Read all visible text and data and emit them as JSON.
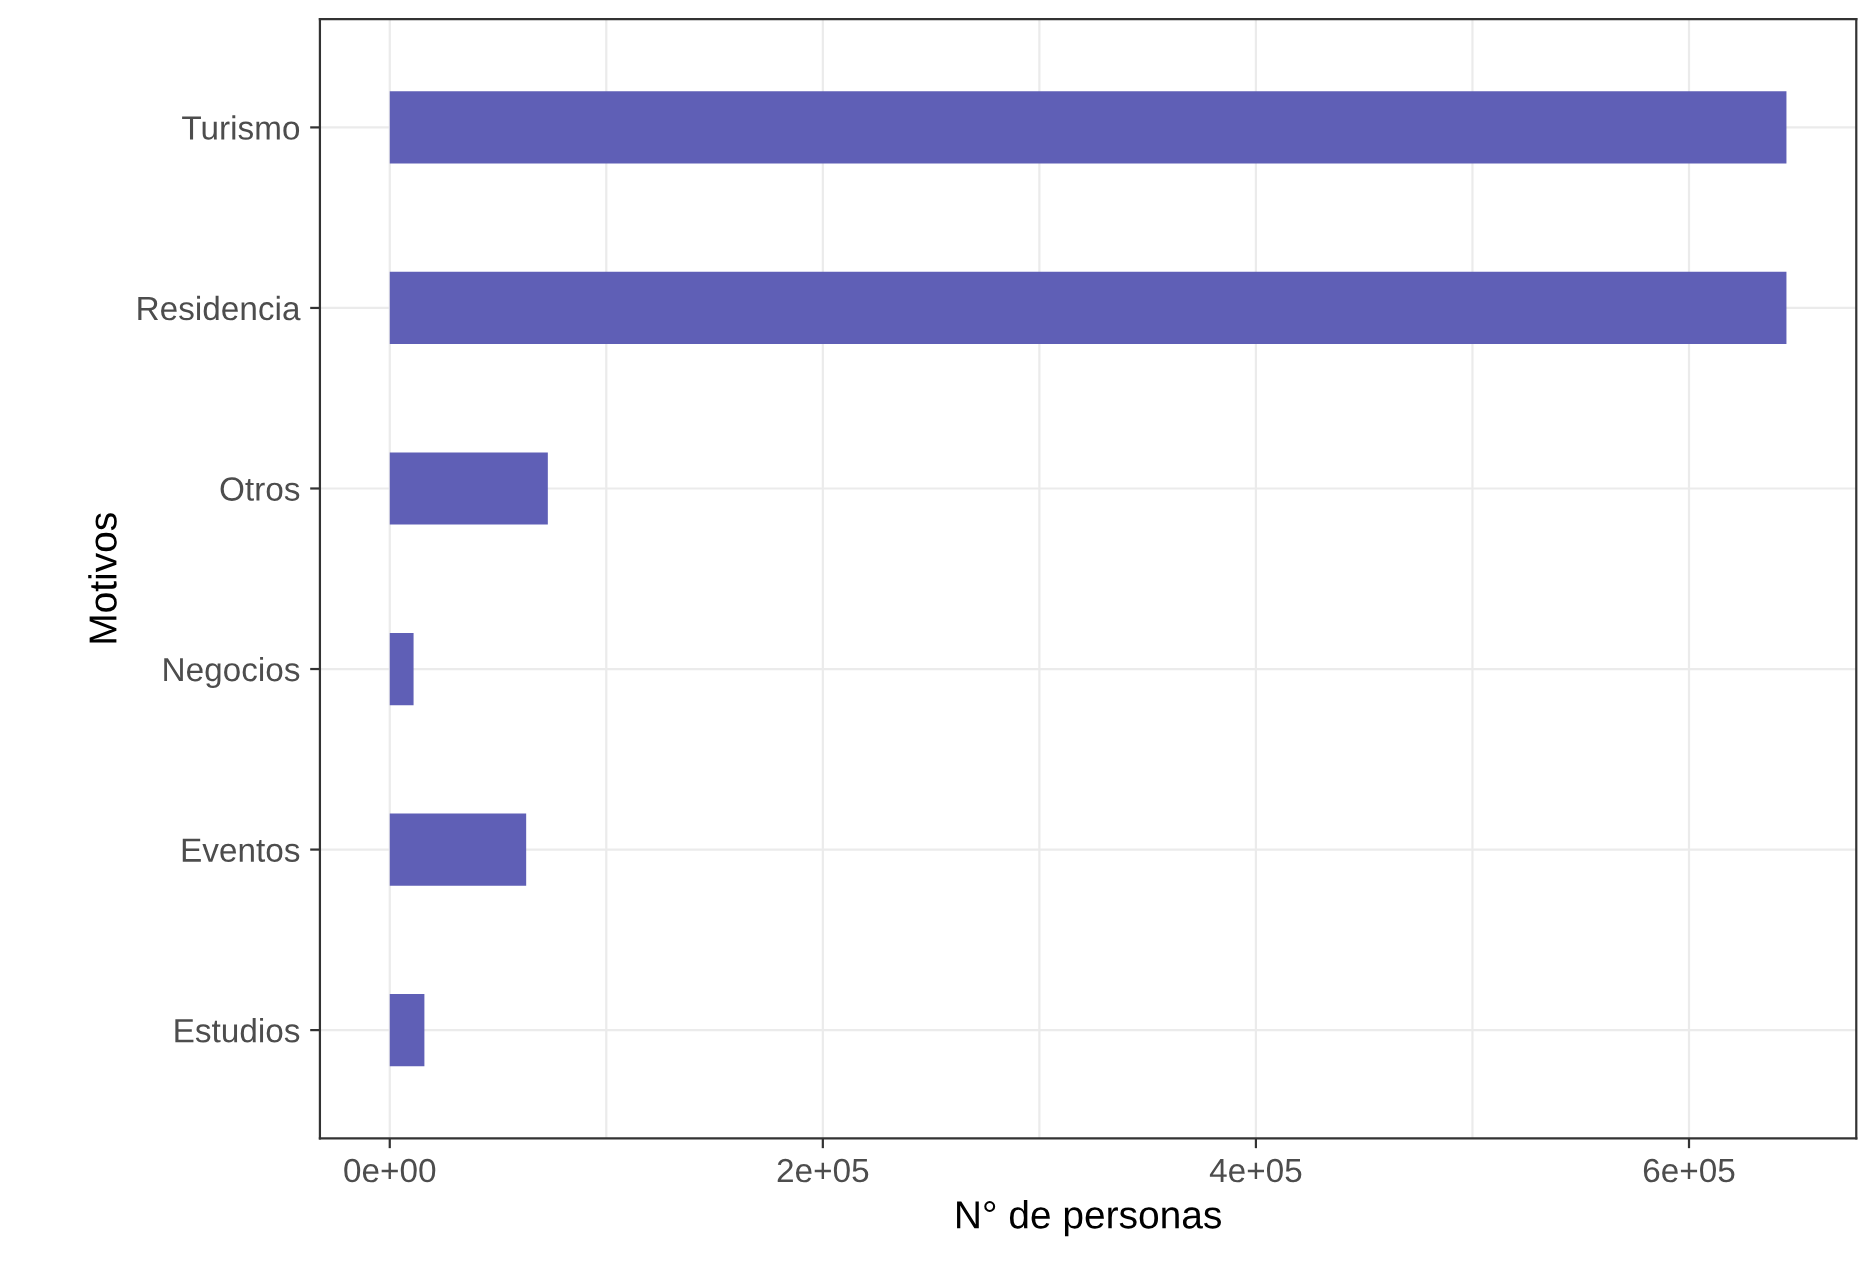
{
  "chart_data": {
    "type": "bar",
    "orientation": "horizontal",
    "xlabel": "N° de personas",
    "ylabel": "Motivos",
    "categories": [
      "Turismo",
      "Residencia",
      "Otros",
      "Negocios",
      "Eventos",
      "Estudios"
    ],
    "values": [
      645000,
      645000,
      73000,
      11000,
      63000,
      16000
    ],
    "color": "#5f5fb6",
    "xlim": [
      -32250,
      677250
    ],
    "xticks": [
      {
        "value": 0,
        "label": "0e+00"
      },
      {
        "value": 100000,
        "label": null
      },
      {
        "value": 200000,
        "label": "2e+05"
      },
      {
        "value": 300000,
        "label": null
      },
      {
        "value": 400000,
        "label": "4e+05"
      },
      {
        "value": 500000,
        "label": null
      },
      {
        "value": 600000,
        "label": "6e+05"
      }
    ],
    "grid": true
  }
}
